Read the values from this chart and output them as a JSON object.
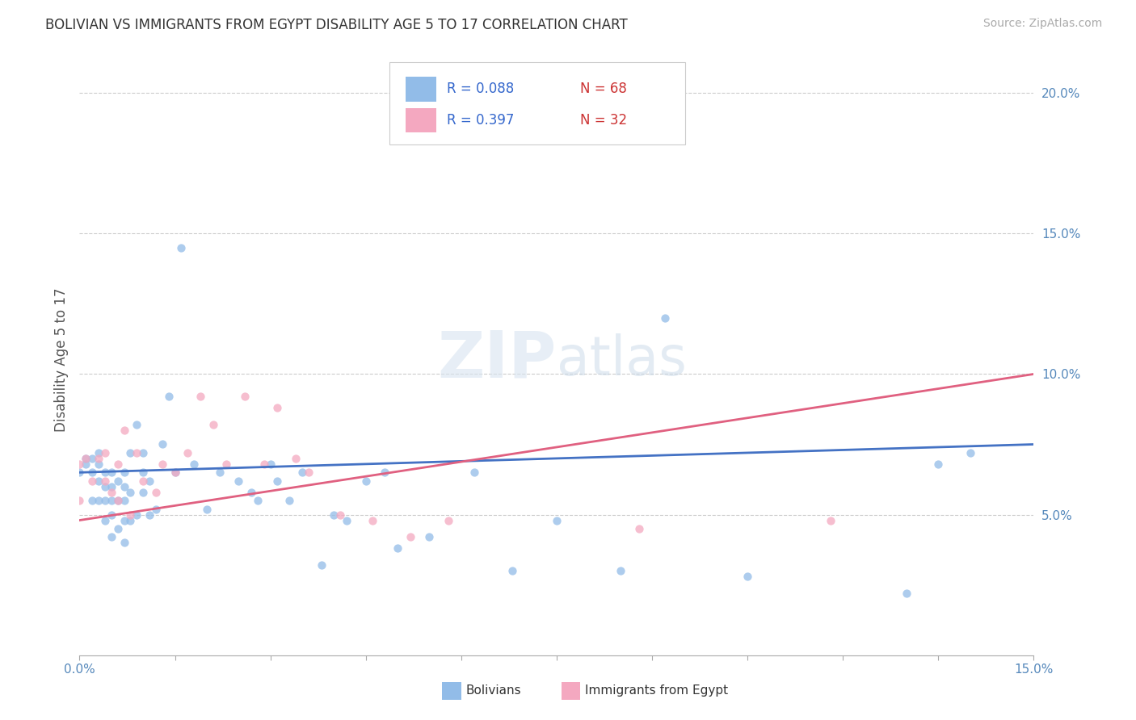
{
  "title": "BOLIVIAN VS IMMIGRANTS FROM EGYPT DISABILITY AGE 5 TO 17 CORRELATION CHART",
  "source": "Source: ZipAtlas.com",
  "ylabel": "Disability Age 5 to 17",
  "xlim": [
    0.0,
    0.15
  ],
  "ylim": [
    0.0,
    0.21
  ],
  "xtick_vals": [
    0.0,
    0.015,
    0.03,
    0.045,
    0.06,
    0.075,
    0.09,
    0.105,
    0.12,
    0.135,
    0.15
  ],
  "xtick_labels": [
    "0.0%",
    "",
    "",
    "",
    "",
    "",
    "",
    "",
    "",
    "",
    "15.0%"
  ],
  "ytick_vals": [
    0.05,
    0.1,
    0.15,
    0.2
  ],
  "ytick_labels": [
    "5.0%",
    "10.0%",
    "15.0%",
    "20.0%"
  ],
  "grid_ytick_vals": [
    0.05,
    0.1,
    0.15,
    0.2
  ],
  "legend_r1": "R = 0.088",
  "legend_n1": "N = 68",
  "legend_r2": "R = 0.397",
  "legend_n2": "N = 32",
  "color_bolivian": "#92bce8",
  "color_egypt": "#f4a8c0",
  "color_line_bolivian": "#4472c4",
  "color_line_egypt": "#e06080",
  "watermark_zip": "ZIP",
  "watermark_atlas": "atlas",
  "bolivian_x": [
    0.0,
    0.001,
    0.001,
    0.002,
    0.002,
    0.002,
    0.003,
    0.003,
    0.003,
    0.003,
    0.004,
    0.004,
    0.004,
    0.004,
    0.005,
    0.005,
    0.005,
    0.005,
    0.005,
    0.006,
    0.006,
    0.006,
    0.007,
    0.007,
    0.007,
    0.007,
    0.007,
    0.008,
    0.008,
    0.008,
    0.009,
    0.009,
    0.01,
    0.01,
    0.01,
    0.011,
    0.011,
    0.012,
    0.013,
    0.014,
    0.015,
    0.016,
    0.018,
    0.02,
    0.022,
    0.025,
    0.027,
    0.028,
    0.03,
    0.031,
    0.033,
    0.035,
    0.038,
    0.04,
    0.042,
    0.045,
    0.048,
    0.05,
    0.055,
    0.062,
    0.068,
    0.075,
    0.085,
    0.092,
    0.105,
    0.13,
    0.135,
    0.14
  ],
  "bolivian_y": [
    0.065,
    0.068,
    0.07,
    0.055,
    0.065,
    0.07,
    0.055,
    0.062,
    0.068,
    0.072,
    0.048,
    0.055,
    0.06,
    0.065,
    0.042,
    0.05,
    0.055,
    0.06,
    0.065,
    0.045,
    0.055,
    0.062,
    0.04,
    0.048,
    0.055,
    0.06,
    0.065,
    0.048,
    0.058,
    0.072,
    0.05,
    0.082,
    0.058,
    0.065,
    0.072,
    0.05,
    0.062,
    0.052,
    0.075,
    0.092,
    0.065,
    0.145,
    0.068,
    0.052,
    0.065,
    0.062,
    0.058,
    0.055,
    0.068,
    0.062,
    0.055,
    0.065,
    0.032,
    0.05,
    0.048,
    0.062,
    0.065,
    0.038,
    0.042,
    0.065,
    0.03,
    0.048,
    0.03,
    0.12,
    0.028,
    0.022,
    0.068,
    0.072
  ],
  "egypt_x": [
    0.0,
    0.0,
    0.001,
    0.002,
    0.003,
    0.004,
    0.004,
    0.005,
    0.006,
    0.006,
    0.007,
    0.008,
    0.009,
    0.01,
    0.012,
    0.013,
    0.015,
    0.017,
    0.019,
    0.021,
    0.023,
    0.026,
    0.029,
    0.031,
    0.034,
    0.036,
    0.041,
    0.046,
    0.052,
    0.058,
    0.088,
    0.118
  ],
  "egypt_y": [
    0.055,
    0.068,
    0.07,
    0.062,
    0.07,
    0.062,
    0.072,
    0.058,
    0.055,
    0.068,
    0.08,
    0.05,
    0.072,
    0.062,
    0.058,
    0.068,
    0.065,
    0.072,
    0.092,
    0.082,
    0.068,
    0.092,
    0.068,
    0.088,
    0.07,
    0.065,
    0.05,
    0.048,
    0.042,
    0.048,
    0.045,
    0.048
  ]
}
